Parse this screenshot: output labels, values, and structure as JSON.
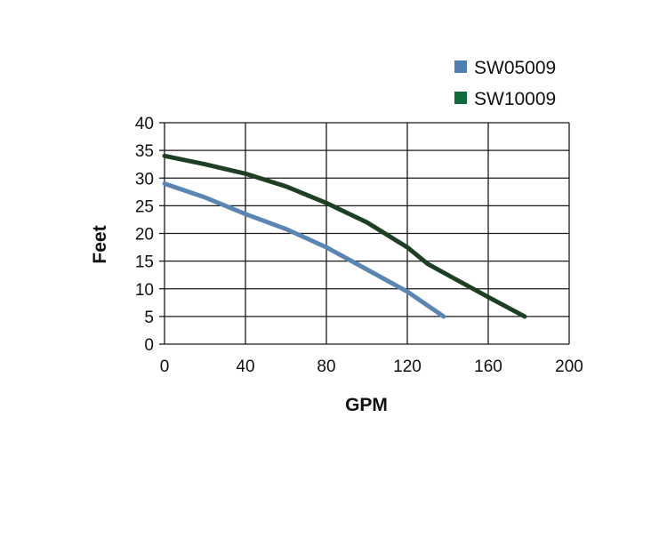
{
  "chart_data": {
    "type": "line",
    "title": "",
    "xlabel": "GPM",
    "ylabel": "Feet",
    "xlim": [
      0,
      200
    ],
    "ylim": [
      0,
      40
    ],
    "x_ticks": [
      "0",
      "40",
      "80",
      "120",
      "160",
      "200"
    ],
    "y_ticks": [
      "0",
      "5",
      "10",
      "15",
      "20",
      "25",
      "30",
      "35",
      "40"
    ],
    "grid": true,
    "legend_position": "top-right",
    "series": [
      {
        "name": "SW05009",
        "color": "#5b86b3",
        "x": [
          0,
          20,
          40,
          60,
          80,
          100,
          120,
          138
        ],
        "y": [
          29,
          26.5,
          23.5,
          20.8,
          17.5,
          13.5,
          9.5,
          5
        ]
      },
      {
        "name": "SW10009",
        "color": "#1e3f24",
        "x": [
          0,
          20,
          40,
          60,
          80,
          100,
          120,
          130,
          140,
          160,
          178
        ],
        "y": [
          34,
          32.5,
          30.8,
          28.5,
          25.5,
          22,
          17.5,
          14.5,
          12.5,
          8.5,
          5
        ]
      }
    ],
    "legend_swatch_colors": [
      "#4f7fb0",
      "#0e6b3a"
    ]
  }
}
